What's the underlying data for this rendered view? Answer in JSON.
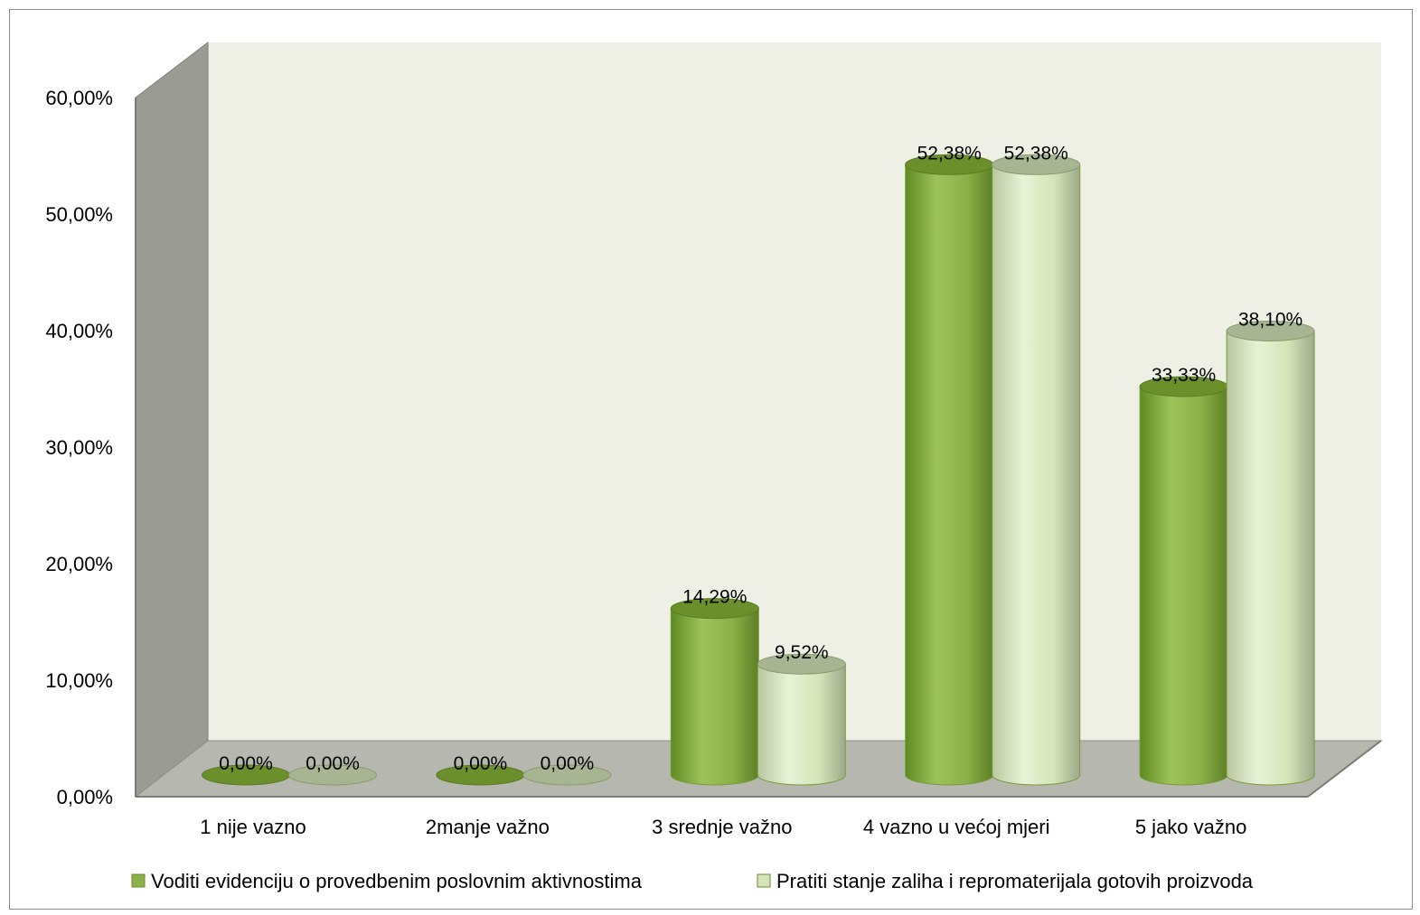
{
  "chart_data": {
    "type": "bar",
    "categories": [
      "1 nije vazno",
      "2manje važno",
      "3 srednje važno",
      "4 vazno u većoj mjeri",
      "5 jako važno"
    ],
    "series": [
      {
        "name": "Voditi evidenciju o provedbenim poslovnim aktivnostima",
        "values": [
          0.0,
          0.0,
          14.29,
          52.38,
          33.33
        ],
        "labels": [
          "0,00%",
          "0,00%",
          "14,29%",
          "52,38%",
          "33,33%"
        ],
        "color": "#8db048",
        "top_color": "#6b8f2b"
      },
      {
        "name": "Pratiti stanje zaliha i repromaterijala gotovih proizvoda",
        "values": [
          0.0,
          0.0,
          9.52,
          52.38,
          38.1
        ],
        "labels": [
          "0,00%",
          "0,00%",
          "9,52%",
          "52,38%",
          "38,10%"
        ],
        "color": "#d5e5b8",
        "top_color": "#a8b592"
      }
    ],
    "yticks": [
      "0,00%",
      "10,00%",
      "20,00%",
      "30,00%",
      "40,00%",
      "50,00%",
      "60,00%"
    ],
    "ylim": [
      0,
      60
    ],
    "title": "",
    "xlabel": "",
    "ylabel": "",
    "legend": "bottom",
    "grid": false
  },
  "colors": {
    "back_wall": "#eef0e6",
    "side_wall": "#9a9c94",
    "floor": "#b6b7af"
  }
}
